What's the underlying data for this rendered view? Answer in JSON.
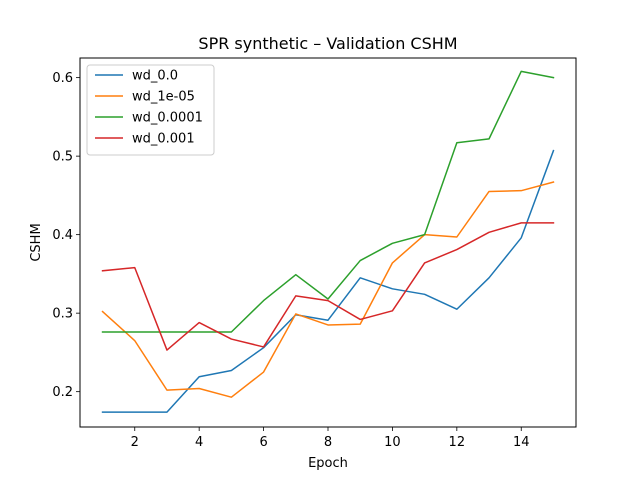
{
  "chart_data": {
    "type": "line",
    "title": "SPR synthetic – Validation CSHM",
    "xlabel": "Epoch",
    "ylabel": "CSHM",
    "xlim": [
      0.3,
      15.7
    ],
    "ylim": [
      0.155,
      0.625
    ],
    "xticks": [
      2,
      4,
      6,
      8,
      10,
      12,
      14
    ],
    "yticks": [
      0.2,
      0.3,
      0.4,
      0.5,
      0.6
    ],
    "grid": false,
    "legend_position": "top-left",
    "x": [
      1,
      2,
      3,
      4,
      5,
      6,
      7,
      8,
      9,
      10,
      11,
      12,
      13,
      14,
      15
    ],
    "series": [
      {
        "name": "wd_0.0",
        "color": "#1f77b4",
        "values": [
          0.174,
          0.174,
          0.174,
          0.219,
          0.227,
          0.256,
          0.298,
          0.291,
          0.345,
          0.331,
          0.324,
          0.305,
          0.345,
          0.396,
          0.507
        ]
      },
      {
        "name": "wd_1e-05",
        "color": "#ff7f0e",
        "values": [
          0.302,
          0.265,
          0.202,
          0.204,
          0.193,
          0.225,
          0.299,
          0.285,
          0.286,
          0.364,
          0.4,
          0.397,
          0.455,
          0.456,
          0.467
        ]
      },
      {
        "name": "wd_0.0001",
        "color": "#2ca02c",
        "values": [
          0.276,
          0.276,
          0.276,
          0.276,
          0.276,
          0.316,
          0.349,
          0.318,
          0.367,
          0.389,
          0.4,
          0.517,
          0.522,
          0.608,
          0.6
        ]
      },
      {
        "name": "wd_0.001",
        "color": "#d62728",
        "values": [
          0.354,
          0.358,
          0.253,
          0.288,
          0.267,
          0.257,
          0.322,
          0.316,
          0.292,
          0.303,
          0.364,
          0.381,
          0.403,
          0.415,
          0.415
        ]
      }
    ]
  }
}
